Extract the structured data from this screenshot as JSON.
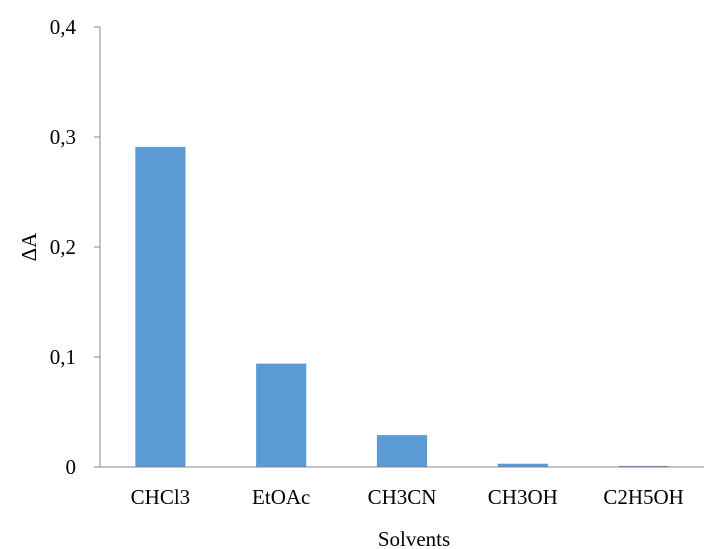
{
  "chart_data": {
    "type": "bar",
    "categories": [
      "CHCl3",
      "EtOAc",
      "CH3CN",
      "CH3OH",
      "C2H5OH"
    ],
    "values": [
      0.291,
      0.094,
      0.029,
      0.003,
      0.001
    ],
    "xlabel": "Solvents",
    "ylabel": "ΔA",
    "ylim": [
      0,
      0.4
    ],
    "yticks": [
      0,
      0.1,
      0.2,
      0.3,
      0.4
    ],
    "ytick_labels": [
      "0",
      "0,1",
      "0,2",
      "0,3",
      "0,4"
    ],
    "grid": false,
    "legend": "none",
    "bar_color": "#5b9bd5",
    "axis_color": "#868686"
  }
}
